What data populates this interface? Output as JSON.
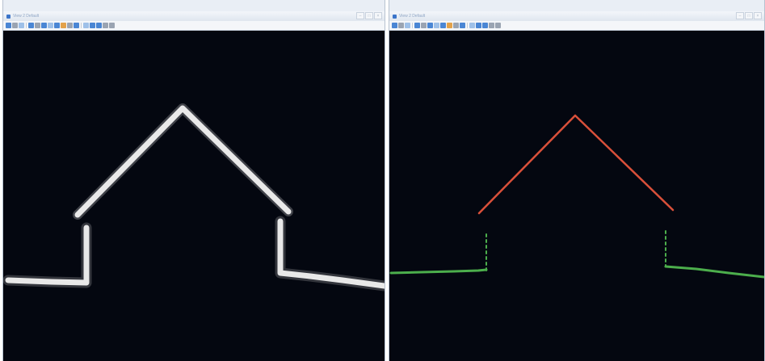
{
  "left_window": {
    "title": "View 2 Default",
    "controls": [
      "–",
      "□",
      "×"
    ],
    "toolbar_icons": [
      "view-icon",
      "cube-icon",
      "camera-icon",
      "arrow-icon",
      "pin-icon",
      "sphere-icon",
      "grid-icon",
      "select-icon",
      "select-box-icon",
      "lasso-icon",
      "rotate-icon",
      "pan-icon",
      "filter-icon",
      "layers-icon",
      "layers2-icon",
      "measure-icon",
      "gear-icon",
      "more-icon"
    ]
  },
  "right_window": {
    "title": "View 2 Default",
    "controls": [
      "–",
      "□",
      "×"
    ],
    "toolbar_icons": [
      "view-icon",
      "cube-icon",
      "camera-icon",
      "arrow-icon",
      "pin-icon",
      "sphere-icon",
      "grid-icon",
      "select-icon",
      "select-box-icon",
      "lasso-icon",
      "rotate-icon",
      "pan-icon",
      "filter-icon",
      "layers-icon",
      "layers2-icon",
      "measure-icon",
      "gear-icon",
      "more-icon"
    ]
  },
  "colors": {
    "viewport_background": "#040710",
    "point_cloud_raw": "#f2f2f2",
    "roof_classified": "#d9503a",
    "ground_walls_classified": "#4cae4c"
  }
}
